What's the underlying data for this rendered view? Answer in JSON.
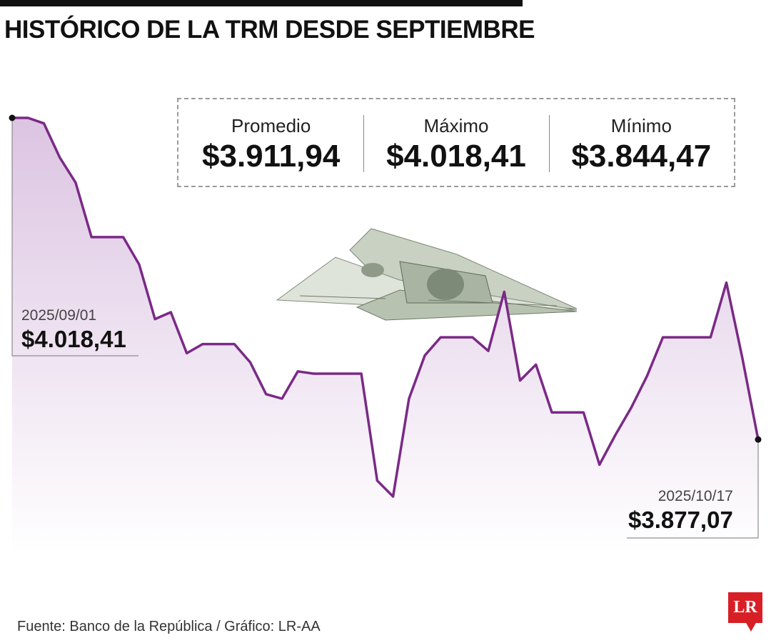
{
  "title": "HISTÓRICO DE LA TRM DESDE SEPTIEMBRE",
  "stats": [
    {
      "label": "Promedio",
      "value": "$3.911,94"
    },
    {
      "label": "Máximo",
      "value": "$4.018,41"
    },
    {
      "label": "Mínimo",
      "value": "$3.844,47"
    }
  ],
  "callouts": {
    "start": {
      "date": "2025/09/01",
      "value": "$4.018,41"
    },
    "end": {
      "date": "2025/10/17",
      "value": "$3.877,07"
    }
  },
  "source": "Fuente: Banco de la República / Gráfico: LR-AA",
  "logo": "LR",
  "colors": {
    "line": "#7a2a86",
    "fill_top": "#dcc4e2",
    "fill_bottom": "#ffffff",
    "logo": "#d81f26"
  },
  "chart_data": {
    "type": "area",
    "series": [
      {
        "values": [
          4018.41,
          4018.41,
          4016.0,
          4001.0,
          3990.0,
          3966.0,
          3966.0,
          3966.0,
          3954.0,
          3930.0,
          3933.0,
          3915.0,
          3919.0,
          3919.0,
          3919.0,
          3911.0,
          3897.0,
          3895.0,
          3907.0,
          3906.0,
          3906.0,
          3906.0,
          3906.0,
          3859.0,
          3852.0,
          3895.0,
          3914.0,
          3922.0,
          3922.0,
          3922.0,
          3916.0,
          3942.0,
          3903.0,
          3910.0,
          3889.0,
          3889.0,
          3889.0,
          3866.0,
          3879.0,
          3891.0,
          3905.0,
          3922.0,
          3922.0,
          3922.0,
          3922.0,
          3946.0,
          3913.0,
          3877.07
        ]
      }
    ],
    "ylim": [
      3830,
      4030
    ]
  }
}
